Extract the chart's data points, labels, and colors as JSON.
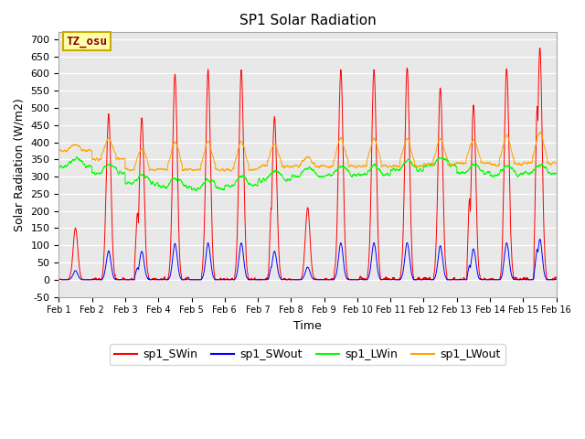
{
  "title": "SP1 Solar Radiation",
  "xlabel": "Time",
  "ylabel": "Solar Radiation (W/m2)",
  "ylim": [
    -50,
    720
  ],
  "colors": {
    "sp1_SWin": "#FF0000",
    "sp1_SWout": "#0000FF",
    "sp1_LWin": "#00FF00",
    "sp1_LWout": "#FFA500"
  },
  "annotation_text": "TZ_osu",
  "annotation_bg": "#FFFFAA",
  "annotation_border": "#CCAA00",
  "plot_bg": "#E8E8E8",
  "fig_bg": "#FFFFFF",
  "n_days": 15,
  "n_points_per_day": 288,
  "sw_in_peaks": [
    150,
    480,
    470,
    595,
    600,
    605,
    470,
    210,
    610,
    610,
    615,
    560,
    505,
    620,
    670
  ],
  "sw_in_peaks2": [
    0,
    0,
    195,
    0,
    0,
    0,
    205,
    0,
    0,
    0,
    0,
    0,
    240,
    0,
    510
  ],
  "lw_in_base": [
    330,
    310,
    280,
    270,
    265,
    275,
    290,
    300,
    305,
    305,
    320,
    330,
    310,
    305,
    310
  ],
  "lw_out_base": [
    375,
    350,
    320,
    320,
    320,
    320,
    330,
    330,
    330,
    330,
    330,
    335,
    340,
    335,
    340
  ]
}
